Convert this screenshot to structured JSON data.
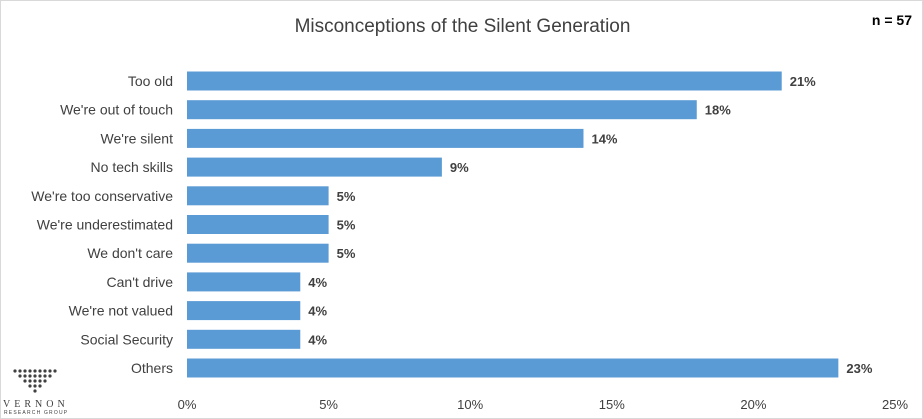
{
  "header": {
    "title": "Misconceptions of the Silent Generation",
    "sample_size": "n = 57"
  },
  "logo": {
    "name": "VERNON",
    "subtitle": "RESEARCH GROUP"
  },
  "colors": {
    "bar": "#5b9bd5",
    "text": "#404040"
  },
  "chart_data": {
    "type": "bar",
    "orientation": "horizontal",
    "title": "Misconceptions of the Silent Generation",
    "xlabel": "",
    "ylabel": "",
    "categories": [
      "Too old",
      "We're out of touch",
      "We're silent",
      "No tech skills",
      "We're too conservative",
      "We're underestimated",
      "We don't care",
      "Can't drive",
      "We're not valued",
      "Social Security",
      "Others"
    ],
    "values": [
      21,
      18,
      14,
      9,
      5,
      5,
      5,
      4,
      4,
      4,
      23
    ],
    "value_labels": [
      "21%",
      "18%",
      "14%",
      "9%",
      "5%",
      "5%",
      "5%",
      "4%",
      "4%",
      "4%",
      "23%"
    ],
    "xlim": [
      0,
      25
    ],
    "x_ticks": [
      0,
      5,
      10,
      15,
      20,
      25
    ],
    "x_tick_labels": [
      "0%",
      "5%",
      "10%",
      "15%",
      "20%",
      "25%"
    ],
    "grid": false,
    "legend": "none"
  }
}
